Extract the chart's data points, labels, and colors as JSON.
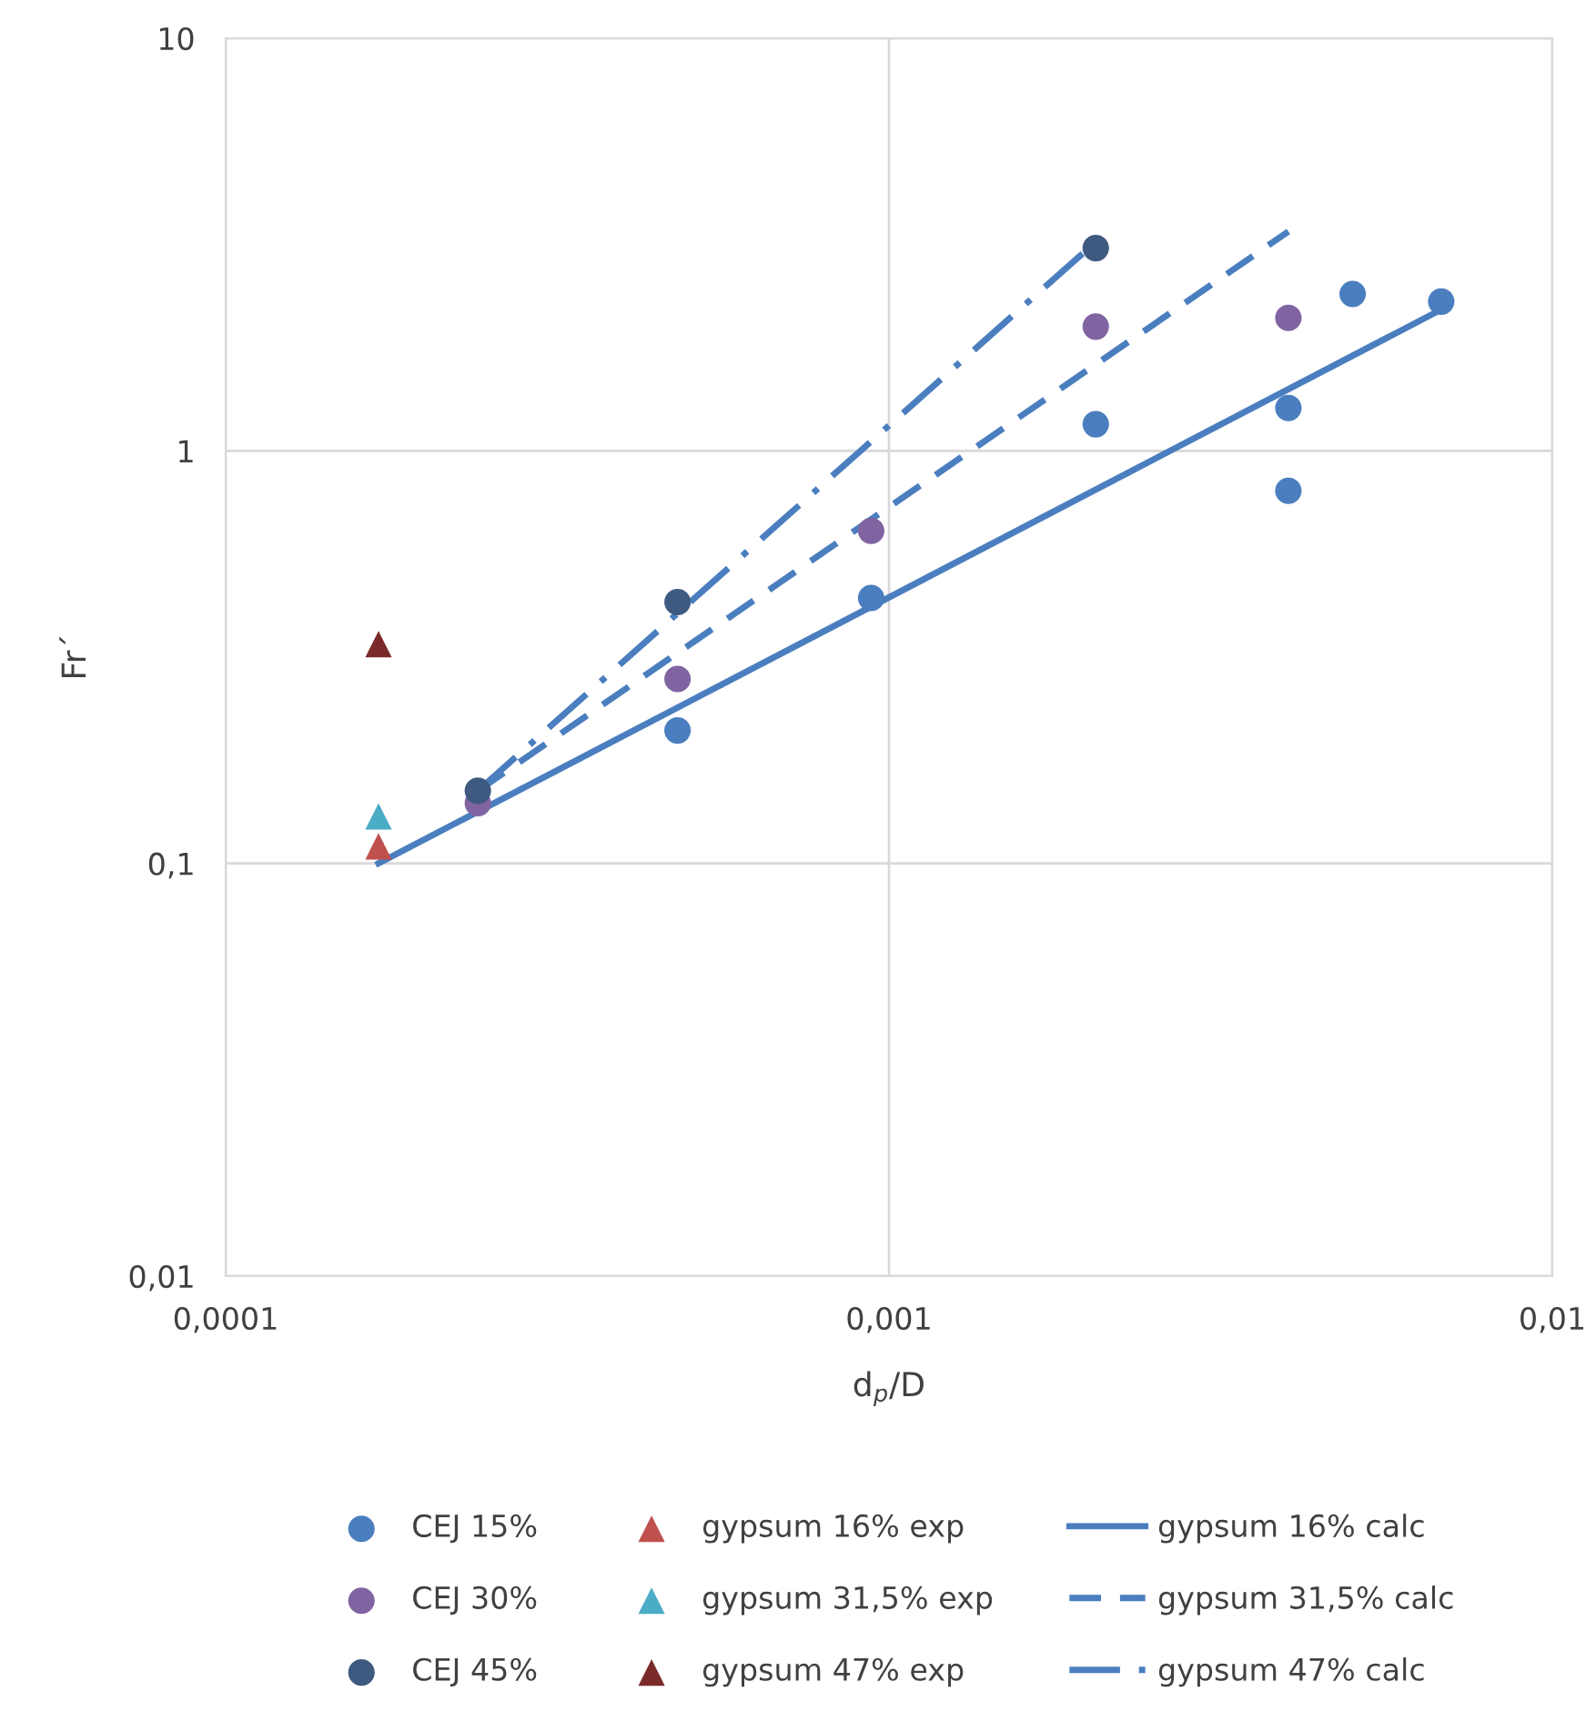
{
  "chart_data": {
    "type": "scatter",
    "xlabel": "d$_{p}$/D",
    "ylabel": "Fr´",
    "log": "xy",
    "grid": true,
    "legend": "bottom",
    "xlim": [
      0.0001,
      0.01
    ],
    "ylim": [
      0.01,
      10
    ],
    "xticks": [
      {
        "value": 0.0001,
        "label": "0,0001"
      },
      {
        "value": 0.001,
        "label": "0,001"
      },
      {
        "value": 0.01,
        "label": "0,01"
      }
    ],
    "yticks": [
      {
        "value": 0.01,
        "label": "0,01"
      },
      {
        "value": 0.1,
        "label": "0,1"
      },
      1,
      10
    ],
    "series": [
      {
        "name": "CEJ 15%",
        "marker": "circle",
        "color": "#4a7ebf",
        "x": [
          0.00048,
          0.00094,
          0.00205,
          0.004,
          0.004,
          0.005,
          0.0068
        ],
        "values": [
          0.21,
          0.44,
          1.16,
          1.27,
          0.8,
          2.4,
          2.3
        ]
      },
      {
        "name": "CEJ 30%",
        "marker": "circle",
        "color": "#8064a2",
        "x": [
          0.00024,
          0.00048,
          0.00094,
          0.00205,
          0.004
        ],
        "values": [
          0.14,
          0.28,
          0.64,
          2.0,
          2.1
        ]
      },
      {
        "name": "CEJ 45%",
        "marker": "circle",
        "color": "#3e5a80",
        "x": [
          0.00024,
          0.00048,
          0.00205
        ],
        "values": [
          0.15,
          0.43,
          3.1
        ]
      },
      {
        "name": "gypsum 16% exp",
        "marker": "triangle",
        "color": "#c0504d",
        "x": [
          0.00017
        ],
        "values": [
          0.11
        ]
      },
      {
        "name": "gypsum 31,5% exp",
        "marker": "triangle",
        "color": "#4bacc6",
        "x": [
          0.00017
        ],
        "values": [
          0.13
        ]
      },
      {
        "name": "gypsum 47% exp",
        "marker": "triangle",
        "color": "#7b2a2a",
        "x": [
          0.00017
        ],
        "values": [
          0.34
        ]
      },
      {
        "name": "gypsum 16% calc",
        "type": "line",
        "line_style": "solid",
        "color": "#4a7ebf",
        "x": [
          0.00017,
          0.0068
        ],
        "values": [
          0.1,
          2.2
        ]
      },
      {
        "name": "gypsum 31,5% calc",
        "type": "line",
        "line_style": "dashed",
        "color": "#4a7ebf",
        "x": [
          0.00024,
          0.004
        ],
        "values": [
          0.15,
          3.4
        ]
      },
      {
        "name": "gypsum 47% calc",
        "type": "line",
        "line_style": "dashdot",
        "color": "#4a7ebf",
        "x": [
          0.00024,
          0.002
        ],
        "values": [
          0.15,
          3.1
        ]
      }
    ]
  }
}
